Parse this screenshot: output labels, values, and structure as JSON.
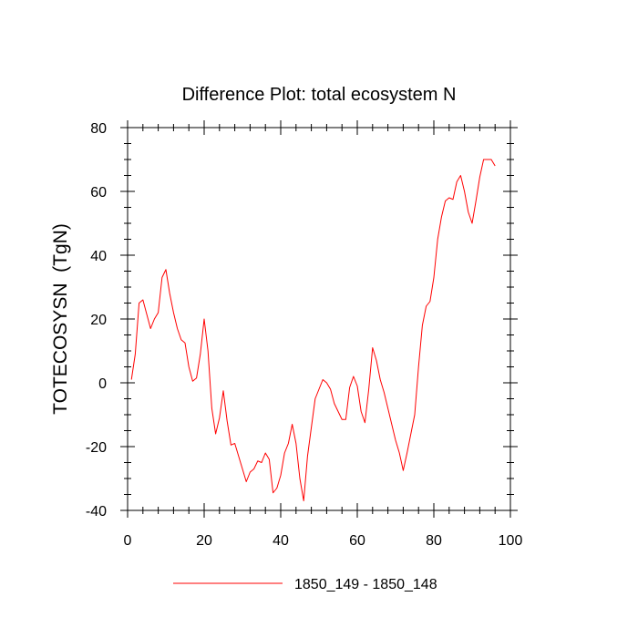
{
  "chart_data": {
    "type": "line",
    "title": "Difference Plot: total ecosystem N",
    "xlabel": "",
    "ylabel": "TOTECOSYSN  (TgN)",
    "xlim": [
      0,
      100
    ],
    "ylim": [
      -40,
      80
    ],
    "xticks": [
      0,
      20,
      40,
      60,
      80,
      100
    ],
    "yticks": [
      -40,
      -20,
      0,
      20,
      40,
      60,
      80
    ],
    "xtick_labels": [
      "0",
      "20",
      "40",
      "60",
      "80",
      "100"
    ],
    "ytick_labels": [
      "-40",
      "-20",
      "0",
      "20",
      "40",
      "60",
      "80"
    ],
    "grid": false,
    "legend_position": "bottom",
    "series": [
      {
        "name": "1850_149 - 1850_148",
        "color": "#ff0000",
        "x": [
          1,
          2,
          3,
          4,
          5,
          6,
          7,
          8,
          9,
          10,
          11,
          12,
          13,
          14,
          15,
          16,
          17,
          18,
          19,
          20,
          21,
          22,
          23,
          24,
          25,
          26,
          27,
          28,
          29,
          30,
          31,
          32,
          33,
          34,
          35,
          36,
          37,
          38,
          39,
          40,
          41,
          42,
          43,
          44,
          45,
          46,
          47,
          48,
          49,
          50,
          51,
          52,
          53,
          54,
          55,
          56,
          57,
          58,
          59,
          60,
          61,
          62,
          63,
          64,
          65,
          66,
          67,
          68,
          69,
          70,
          71,
          72,
          73,
          74,
          75,
          76,
          77,
          78,
          79,
          80,
          81,
          82,
          83,
          84,
          85,
          86,
          87,
          88,
          89,
          90,
          91,
          92,
          93,
          94,
          95,
          96
        ],
        "y": [
          1,
          9,
          25,
          26,
          21.5,
          17,
          20,
          22,
          33,
          35.5,
          28,
          22,
          17,
          13.5,
          12.5,
          5,
          0.5,
          1.5,
          9,
          20,
          10,
          -8,
          -16,
          -11,
          -2.5,
          -12,
          -19.5,
          -19,
          -23,
          -27,
          -31,
          -28,
          -27,
          -24.5,
          -25,
          -22,
          -24,
          -34.5,
          -33,
          -29,
          -22,
          -19,
          -13,
          -19,
          -30,
          -37,
          -23,
          -14,
          -5,
          -2,
          1,
          0,
          -2,
          -6.5,
          -9,
          -11.5,
          -11.5,
          -1.5,
          2,
          -1,
          -9,
          -12.5,
          -2,
          11,
          7,
          1,
          -3,
          -8,
          -13,
          -18,
          -22,
          -27.5,
          -22,
          -16,
          -10,
          5,
          18,
          24,
          25.5,
          33,
          45,
          52,
          57,
          58,
          57.5,
          63,
          65,
          60,
          53.5,
          50,
          57,
          64.5,
          70,
          70,
          70,
          68
        ]
      }
    ]
  }
}
